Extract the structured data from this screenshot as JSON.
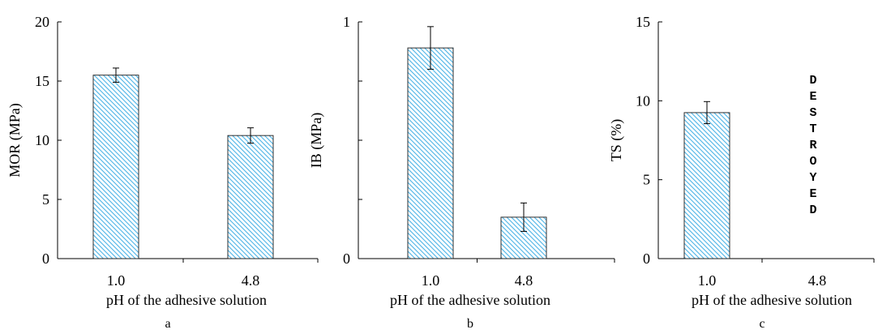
{
  "colors": {
    "bar_stripe": "#4bb3e6",
    "bar_background": "#ffffff",
    "axis": "#000000"
  },
  "chart_data": [
    {
      "type": "bar",
      "panel_label": "a",
      "categories": [
        "1.0",
        "4.8"
      ],
      "values": [
        15.5,
        10.4
      ],
      "errors": [
        0.6,
        0.65
      ],
      "xlabel": "pH of the adhesive solution",
      "ylabel": "MOR (MPa)",
      "ylim": [
        0,
        20
      ],
      "yticks": [
        "0",
        "5",
        "10",
        "15",
        "20"
      ],
      "grid": false
    },
    {
      "type": "bar",
      "panel_label": "b",
      "categories": [
        "1.0",
        "4.8"
      ],
      "values": [
        0.89,
        0.175
      ],
      "errors": [
        0.09,
        0.06
      ],
      "xlabel": "pH of the adhesive solution",
      "ylabel": "IB (MPa)",
      "ylim": [
        0,
        1
      ],
      "yticks": [
        "0",
        "1"
      ],
      "ytick_count": 5,
      "grid": false
    },
    {
      "type": "bar",
      "panel_label": "c",
      "categories": [
        "1.0",
        "4.8"
      ],
      "values": [
        9.25,
        null
      ],
      "errors": [
        0.7,
        null
      ],
      "xlabel": "pH of the adhesive solution",
      "ylabel": "TS (%)",
      "ylim": [
        0,
        15
      ],
      "yticks": [
        "0",
        "5",
        "10",
        "15"
      ],
      "annotation": "DESTROYED",
      "grid": false
    }
  ]
}
